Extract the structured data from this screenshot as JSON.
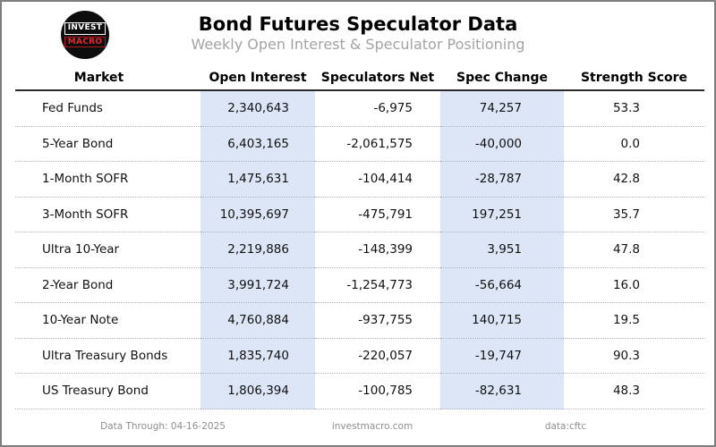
{
  "header": {
    "logo_top": "INVEST",
    "logo_bottom": "MACRO",
    "title": "Bond Futures Speculator Data",
    "subtitle": "Weekly Open Interest & Speculator Positioning"
  },
  "table": {
    "columns": [
      "Market",
      "Open Interest",
      "Speculators Net",
      "Spec Change",
      "Strength Score"
    ],
    "rows": [
      [
        "Fed Funds",
        "2,340,643",
        "-6,975",
        "74,257",
        "53.3"
      ],
      [
        "5-Year Bond",
        "6,403,165",
        "-2,061,575",
        "-40,000",
        "0.0"
      ],
      [
        "1-Month SOFR",
        "1,475,631",
        "-104,414",
        "-28,787",
        "42.8"
      ],
      [
        "3-Month SOFR",
        "10,395,697",
        "-475,791",
        "197,251",
        "35.7"
      ],
      [
        "Ultra 10-Year",
        "2,219,886",
        "-148,399",
        "3,951",
        "47.8"
      ],
      [
        "2-Year Bond",
        "3,991,724",
        "-1,254,773",
        "-56,664",
        "16.0"
      ],
      [
        "10-Year Note",
        "4,760,884",
        "-937,755",
        "140,715",
        "19.5"
      ],
      [
        "Ultra Treasury Bonds",
        "1,835,740",
        "-220,057",
        "-19,747",
        "90.3"
      ],
      [
        "US Treasury Bond",
        "1,806,394",
        "-100,785",
        "-82,631",
        "48.3"
      ]
    ]
  },
  "footer": {
    "data_through": "Data Through: 04-16-2025",
    "website": "investmacro.com",
    "source": "data:cftc"
  },
  "colors": {
    "highlight_column_bg": "#dce6f7",
    "logo_red": "#e8282e",
    "subtitle_gray": "#a3a3a3",
    "footer_gray": "#8f8f8f",
    "header_rule": "#2b2b2b"
  },
  "chart_data": {
    "type": "table",
    "title": "Bond Futures Speculator Data",
    "subtitle": "Weekly Open Interest & Speculator Positioning",
    "columns": [
      "Market",
      "Open Interest",
      "Speculators Net",
      "Spec Change",
      "Strength Score"
    ],
    "rows": [
      [
        "Fed Funds",
        2340643,
        -6975,
        74257,
        53.3
      ],
      [
        "5-Year Bond",
        6403165,
        -2061575,
        -40000,
        0.0
      ],
      [
        "1-Month SOFR",
        1475631,
        -104414,
        -28787,
        42.8
      ],
      [
        "3-Month SOFR",
        10395697,
        -475791,
        197251,
        35.7
      ],
      [
        "Ultra 10-Year",
        2219886,
        -148399,
        3951,
        47.8
      ],
      [
        "2-Year Bond",
        3991724,
        -1254773,
        -56664,
        16.0
      ],
      [
        "10-Year Note",
        4760884,
        -937755,
        140715,
        19.5
      ],
      [
        "Ultra Treasury Bonds",
        1835740,
        -220057,
        -19747,
        90.3
      ],
      [
        "US Treasury Bond",
        1806394,
        -100785,
        -82631,
        48.3
      ]
    ],
    "highlighted_columns": [
      "Open Interest",
      "Spec Change"
    ],
    "data_through": "04-16-2025",
    "source": "cftc"
  }
}
